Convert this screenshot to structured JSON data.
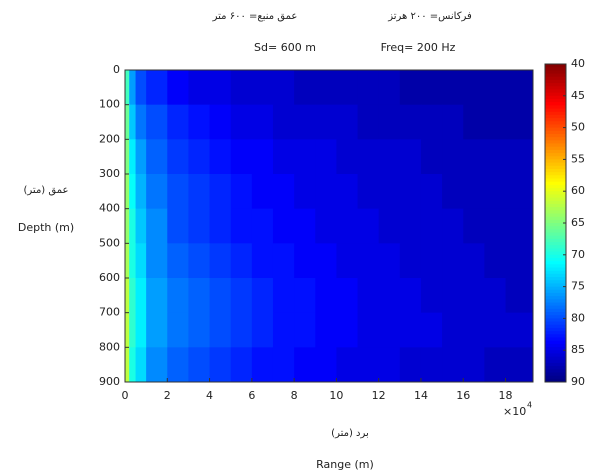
{
  "chart_data": {
    "type": "heatmap",
    "title_fa_freq": "فرکانس= ۲۰۰ هرتز",
    "title_fa_depth": "عمق منبع= ۶۰۰ متر",
    "title_sd": "Sd= 600 m",
    "title_freq": "Freq= 200 Hz",
    "ylabel_fa": "عمق (متر)",
    "ylabel": "Depth (m)",
    "xlabel_fa": "برد (متر)",
    "xlabel": "Range (m)",
    "x_scale_base": "×10",
    "x_scale_exp": "4",
    "xbins": [
      0,
      0.2,
      0.5,
      1,
      2,
      3,
      4,
      5,
      6,
      7,
      8,
      9,
      10,
      11,
      12,
      13,
      14,
      15,
      16,
      17,
      18,
      19.3
    ],
    "ybins": [
      0,
      100,
      200,
      300,
      400,
      500,
      600,
      700,
      800,
      900
    ],
    "values": [
      [
        68,
        76,
        80,
        82,
        84,
        85,
        85,
        86,
        86,
        86,
        87,
        87,
        87,
        87,
        87,
        88,
        88,
        88,
        88,
        88,
        88
      ],
      [
        66,
        74,
        78,
        80,
        82,
        83,
        84,
        85,
        85,
        86,
        86,
        86,
        86,
        87,
        87,
        87,
        87,
        87,
        88,
        88,
        88
      ],
      [
        65,
        72,
        76,
        79,
        81,
        82,
        83,
        84,
        84,
        85,
        85,
        85,
        86,
        86,
        86,
        86,
        87,
        87,
        87,
        87,
        87
      ],
      [
        64,
        71,
        75,
        78,
        80,
        81,
        82,
        83,
        84,
        84,
        85,
        85,
        85,
        86,
        86,
        86,
        86,
        87,
        87,
        87,
        87
      ],
      [
        64,
        70,
        74,
        77,
        80,
        81,
        82,
        83,
        83,
        84,
        84,
        85,
        85,
        85,
        86,
        86,
        86,
        86,
        87,
        87,
        87
      ],
      [
        63,
        70,
        73,
        77,
        79,
        80,
        81,
        82,
        83,
        83,
        84,
        84,
        85,
        85,
        85,
        86,
        86,
        86,
        86,
        87,
        87
      ],
      [
        62,
        69,
        72,
        76,
        78,
        79,
        80,
        81,
        82,
        83,
        83,
        84,
        84,
        85,
        85,
        85,
        86,
        86,
        86,
        86,
        87
      ],
      [
        62,
        69,
        72,
        76,
        78,
        79,
        80,
        81,
        82,
        83,
        83,
        84,
        84,
        85,
        85,
        85,
        85,
        86,
        86,
        86,
        86
      ],
      [
        62,
        70,
        73,
        77,
        79,
        80,
        81,
        82,
        83,
        83,
        84,
        84,
        85,
        85,
        85,
        86,
        86,
        86,
        86,
        87,
        87
      ]
    ],
    "xlim": [
      0,
      19.3
    ],
    "ylim": [
      0,
      900
    ],
    "y_inverted": true,
    "xticks": [
      0,
      2,
      4,
      6,
      8,
      10,
      12,
      14,
      16,
      18
    ],
    "yticks": [
      0,
      100,
      200,
      300,
      400,
      500,
      600,
      700,
      800,
      900
    ],
    "colormap": "jet",
    "colormap_reversed": true,
    "clim": [
      40,
      90
    ],
    "cticks": [
      40,
      45,
      50,
      55,
      60,
      65,
      70,
      75,
      80,
      85,
      90
    ]
  }
}
